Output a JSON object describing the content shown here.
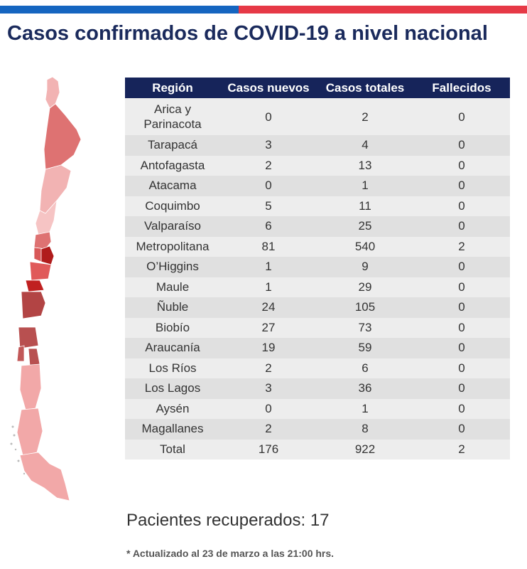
{
  "colors": {
    "bar_blue": "#1565c0",
    "bar_red": "#e63946",
    "title": "#1a2a5c",
    "header_bg": "#16245a"
  },
  "title": "Casos confirmados de COVID-19 a nivel nacional",
  "table": {
    "headers": [
      "Región",
      "Casos nuevos",
      "Casos totales",
      "Fallecidos"
    ],
    "rows": [
      {
        "region": "Arica y Parinacota",
        "nuevos": "0",
        "totales": "2",
        "fallecidos": "0"
      },
      {
        "region": "Tarapacá",
        "nuevos": "3",
        "totales": "4",
        "fallecidos": "0"
      },
      {
        "region": "Antofagasta",
        "nuevos": "2",
        "totales": "13",
        "fallecidos": "0"
      },
      {
        "region": "Atacama",
        "nuevos": "0",
        "totales": "1",
        "fallecidos": "0"
      },
      {
        "region": "Coquimbo",
        "nuevos": "5",
        "totales": "11",
        "fallecidos": "0"
      },
      {
        "region": "Valparaíso",
        "nuevos": "6",
        "totales": "25",
        "fallecidos": "0"
      },
      {
        "region": "Metropolitana",
        "nuevos": "81",
        "totales": "540",
        "fallecidos": "2"
      },
      {
        "region": "O’Higgins",
        "nuevos": "1",
        "totales": "9",
        "fallecidos": "0"
      },
      {
        "region": "Maule",
        "nuevos": "1",
        "totales": "29",
        "fallecidos": "0"
      },
      {
        "region": "Ñuble",
        "nuevos": "24",
        "totales": "105",
        "fallecidos": "0"
      },
      {
        "region": "Biobío",
        "nuevos": "27",
        "totales": "73",
        "fallecidos": "0"
      },
      {
        "region": "Araucanía",
        "nuevos": "19",
        "totales": "59",
        "fallecidos": "0"
      },
      {
        "region": "Los Ríos",
        "nuevos": "2",
        "totales": "6",
        "fallecidos": "0"
      },
      {
        "region": "Los Lagos",
        "nuevos": "3",
        "totales": "36",
        "fallecidos": "0"
      },
      {
        "region": "Aysén",
        "nuevos": "0",
        "totales": "1",
        "fallecidos": "0"
      },
      {
        "region": "Magallanes",
        "nuevos": "2",
        "totales": "8",
        "fallecidos": "0"
      },
      {
        "region": "Total",
        "nuevos": "176",
        "totales": "922",
        "fallecidos": "2"
      }
    ]
  },
  "recovered": "Pacientes recuperados: 17",
  "footnote": "* Actualizado al 23 de marzo a las 21:00 hrs."
}
